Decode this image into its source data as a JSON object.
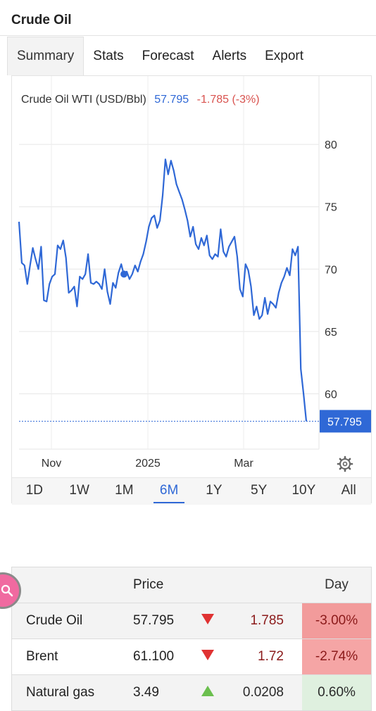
{
  "header": {
    "title": "Crude Oil"
  },
  "tabs": [
    {
      "label": "Summary",
      "active": true
    },
    {
      "label": "Stats"
    },
    {
      "label": "Forecast"
    },
    {
      "label": "Alerts"
    },
    {
      "label": "Export"
    }
  ],
  "ranges": [
    {
      "label": "1D"
    },
    {
      "label": "1W"
    },
    {
      "label": "1M"
    },
    {
      "label": "6M",
      "active": true
    },
    {
      "label": "1Y"
    },
    {
      "label": "5Y"
    },
    {
      "label": "10Y"
    },
    {
      "label": "All"
    }
  ],
  "chart_data": {
    "type": "line",
    "legend": {
      "name": "Crude Oil WTI (USD/Bbl)",
      "value": "57.795",
      "change": "-1.785 (-3%)"
    },
    "x_tick_labels": [
      "Nov",
      "2025",
      "Mar"
    ],
    "y_ticks": [
      60,
      65,
      70,
      75,
      80
    ],
    "ylim": [
      55,
      83
    ],
    "last_value_label": "57.795",
    "grid": true,
    "series": [
      {
        "values": [
          73.8,
          70.5,
          70.3,
          68.8,
          70.3,
          71.7,
          70.8,
          70.0,
          71.8,
          67.5,
          67.4,
          68.8,
          69.4,
          69.6,
          71.9,
          71.6,
          72.3,
          70.9,
          68.1,
          68.3,
          68.6,
          67.0,
          69.4,
          69.2,
          69.6,
          71.2,
          68.9,
          68.8,
          69.0,
          68.8,
          68.4,
          70.0,
          68.2,
          67.2,
          68.9,
          68.5,
          69.7,
          70.4,
          69.5,
          69.8,
          69.2,
          69.6,
          70.3,
          69.8,
          70.6,
          71.2,
          72.2,
          73.4,
          74.1,
          74.3,
          73.3,
          73.9,
          75.9,
          78.8,
          77.6,
          78.7,
          77.9,
          76.8,
          76.2,
          75.6,
          74.8,
          73.9,
          72.6,
          73.4,
          72.0,
          71.6,
          72.5,
          71.9,
          72.7,
          71.1,
          70.8,
          71.2,
          71.0,
          73.2,
          71.4,
          71.0,
          71.8,
          72.2,
          72.6,
          71.0,
          68.4,
          67.8,
          70.4,
          69.9,
          68.6,
          66.3,
          67.0,
          66.0,
          66.3,
          67.7,
          66.4,
          67.4,
          67.2,
          66.9,
          68.1,
          68.9,
          69.4,
          70.1,
          69.5,
          71.6,
          71.1,
          71.8,
          62.0,
          60.0,
          57.8
        ]
      }
    ],
    "marker_value": 69.6
  },
  "table": {
    "headers": {
      "price": "Price",
      "day": "Day"
    },
    "rows": [
      {
        "name": "Crude Oil",
        "price": "57.795",
        "direction": "down",
        "change": "1.785",
        "day": "-3.00%"
      },
      {
        "name": "Brent",
        "price": "61.100",
        "direction": "down",
        "change": "1.72",
        "day": "-2.74%"
      },
      {
        "name": "Natural gas",
        "price": "3.49",
        "direction": "up",
        "change": "0.0208",
        "day": "0.60%"
      }
    ]
  },
  "colors": {
    "line": "#2f68d6",
    "accent": "#2f68d6",
    "negative": "#d9534f",
    "up_arrow": "#6bbf4e",
    "down_arrow": "#e03232"
  }
}
